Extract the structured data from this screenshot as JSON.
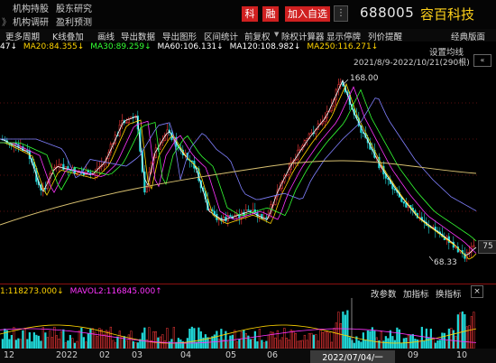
{
  "header": {
    "nav_row1": [
      "机构持股",
      "股东研究"
    ],
    "nav_row2": [
      "机构调研",
      "盈利预测"
    ],
    "badge_ke": "科",
    "badge_rong": "融",
    "add_watch": "加入自选",
    "stock_code": "688005",
    "stock_name": "容百科技"
  },
  "toolbar": {
    "items": [
      "更多周期",
      "K线叠加",
      "画线",
      "导出数据",
      "导出图形",
      "区间统计",
      "前复权",
      "除权计算器",
      "显示停牌",
      "列价提醒",
      "经典版面"
    ]
  },
  "ma_legend": [
    {
      "text": "47↓",
      "color": "#ffffff"
    },
    {
      "text": "MA20:84.355↓",
      "color": "#ffd400"
    },
    {
      "text": "MA30:89.259↓",
      "color": "#33ff33"
    },
    {
      "text": "MA60:106.131↓",
      "color": "#ffffff"
    },
    {
      "text": "MA120:108.982↓",
      "color": "#ffffff"
    },
    {
      "text": "MA250:116.271↓",
      "color": "#ffd400"
    }
  ],
  "chart_tools": {
    "settings": "设置均线",
    "range": "2021/8/9-2022/10/21(290根)"
  },
  "annotations": {
    "high": "168.00",
    "low": "68.33",
    "price_tag": "75"
  },
  "volume": {
    "mavol1": "1:118273.000↓",
    "mavol2": "MAVOL2:116845.000↑",
    "change_param": "改参数",
    "add_indicator": "加指标",
    "switch_indicator": "换指标"
  },
  "xaxis": {
    "labels": [
      "12",
      "2022",
      "02",
      "03",
      "04",
      "05",
      "06",
      "2022/07/04/一",
      "09",
      "10"
    ],
    "cursor_date": "2022/07/04/一"
  },
  "colors": {
    "up": "#ff3b3b",
    "down": "#20d8d8",
    "ma5": "#ffffff",
    "ma10": "#ffd400",
    "ma20": "#ff33ff",
    "ma30": "#33ff33",
    "ma60": "#8080ff",
    "ma250": "#d8c070"
  }
}
